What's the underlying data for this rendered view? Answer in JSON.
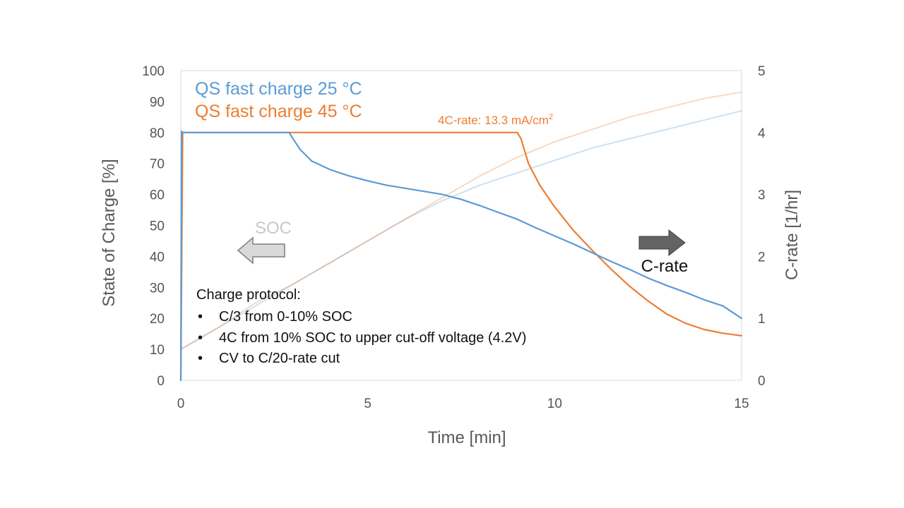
{
  "chart_data": {
    "type": "line",
    "x_axis": {
      "label": "Time [min]",
      "range": [
        0,
        15
      ],
      "ticks": [
        "0",
        "5",
        "10",
        "15"
      ]
    },
    "y_axis_left": {
      "label": "State of Charge [%]",
      "range": [
        0,
        100
      ],
      "ticks": [
        "0",
        "10",
        "20",
        "30",
        "40",
        "50",
        "60",
        "70",
        "80",
        "90",
        "100"
      ]
    },
    "y_axis_right": {
      "label": "C-rate [1/hr]",
      "range": [
        0,
        5
      ],
      "ticks": [
        "0",
        "1",
        "2",
        "3",
        "4",
        "5"
      ]
    },
    "legend": [
      "QS fast charge 25 °C",
      "QS fast charge 45 °C"
    ],
    "colors": {
      "c25": "#5b9bd5",
      "c45": "#ed7d31",
      "soc_arrow": "#d9d9d9",
      "crate_arrow": "#595959"
    },
    "series": [
      {
        "name": "QS fast charge 25 °C",
        "quantity": "C-rate",
        "axis": "right",
        "x": [
          0,
          0.02,
          0.05,
          1,
          2,
          2.9,
          3.0,
          3.2,
          3.5,
          4,
          4.5,
          5,
          5.5,
          6,
          6.5,
          7,
          7.5,
          8,
          8.5,
          9,
          9.5,
          10,
          10.5,
          11,
          11.5,
          12,
          12.5,
          13,
          13.5,
          14,
          14.5,
          15
        ],
        "values": [
          0,
          4.02,
          4.0,
          4.0,
          4.0,
          4.0,
          3.9,
          3.72,
          3.54,
          3.4,
          3.3,
          3.22,
          3.15,
          3.1,
          3.05,
          3.0,
          2.92,
          2.82,
          2.71,
          2.6,
          2.46,
          2.33,
          2.2,
          2.06,
          1.92,
          1.79,
          1.65,
          1.53,
          1.42,
          1.3,
          1.2,
          1.0
        ]
      },
      {
        "name": "QS fast charge 45 °C",
        "quantity": "C-rate",
        "axis": "right",
        "x": [
          0,
          0.05,
          3,
          6,
          9.0,
          9.1,
          9.3,
          9.6,
          10,
          10.5,
          11,
          11.5,
          12,
          12.5,
          13,
          13.5,
          14,
          14.5,
          15
        ],
        "values": [
          0,
          4.0,
          4.0,
          4.0,
          4.0,
          3.9,
          3.5,
          3.15,
          2.8,
          2.42,
          2.1,
          1.8,
          1.52,
          1.28,
          1.07,
          0.92,
          0.82,
          0.76,
          0.72
        ]
      },
      {
        "name": "QS fast charge 25 °C",
        "quantity": "SOC",
        "axis": "left",
        "x": [
          0,
          1,
          2,
          3,
          4,
          5,
          6,
          7,
          8,
          9,
          10,
          11,
          12,
          13,
          14,
          15
        ],
        "values": [
          10,
          17,
          25,
          31,
          38,
          45,
          52,
          58,
          63,
          67,
          71,
          75,
          78,
          81,
          84,
          87
        ]
      },
      {
        "name": "QS fast charge 45 °C",
        "quantity": "SOC",
        "axis": "left",
        "x": [
          0,
          1,
          2,
          3,
          4,
          5,
          6,
          7,
          8,
          9,
          10,
          11,
          12,
          13,
          14,
          15
        ],
        "values": [
          10,
          17,
          24,
          31,
          38,
          45,
          52,
          59,
          66,
          72,
          77,
          81,
          85,
          88,
          91,
          93
        ]
      }
    ],
    "annotations": {
      "c_rate_note": "4C-rate: 13.3 mA/cm",
      "c_rate_note_sup": "2",
      "soc_arrow_label": "SOC",
      "crate_arrow_label": "C-rate",
      "protocol_title": "Charge protocol:",
      "protocol_bullet": "•",
      "protocol_items": [
        "C/3 from 0-10% SOC",
        "4C from 10% SOC to upper cut-off voltage (4.2V)",
        "CV to C/20-rate cut"
      ]
    }
  }
}
